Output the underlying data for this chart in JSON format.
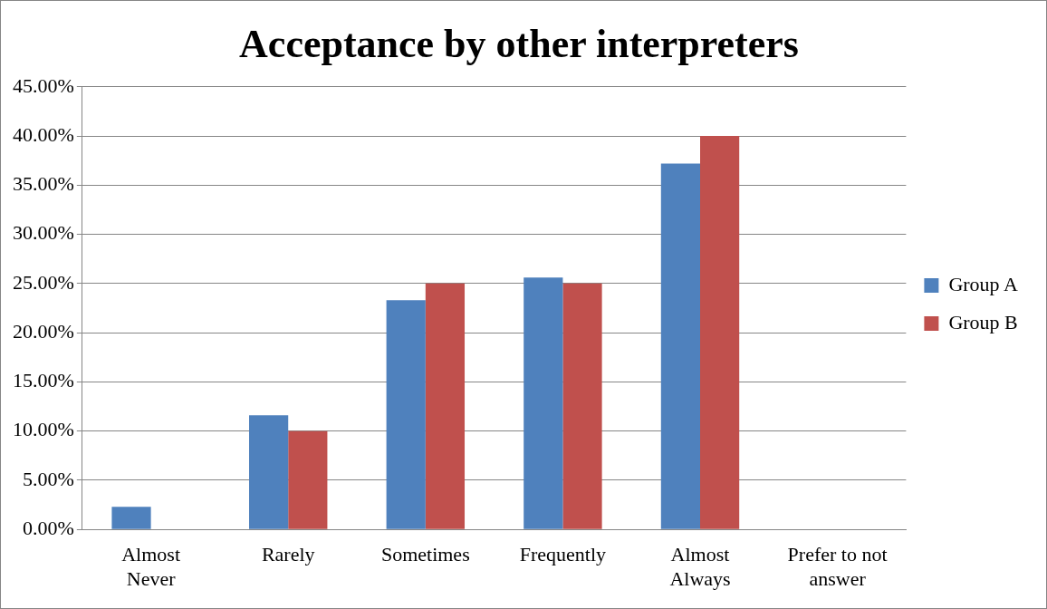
{
  "chart_data": {
    "type": "bar",
    "title": "Acceptance by other interpreters",
    "categories": [
      "Almost Never",
      "Rarely",
      "Sometimes",
      "Frequently",
      "Almost Always",
      "Prefer to not answer"
    ],
    "series": [
      {
        "name": "Group A",
        "color": "#4f81bd",
        "values": [
          2.3,
          11.6,
          23.3,
          25.6,
          37.2,
          0
        ]
      },
      {
        "name": "Group B",
        "color": "#c0504d",
        "values": [
          0,
          10,
          25,
          25,
          40,
          0
        ]
      }
    ],
    "ylim": [
      0,
      45
    ],
    "yticks": [
      {
        "value": 0,
        "label": "0.00%"
      },
      {
        "value": 5,
        "label": "5.00%"
      },
      {
        "value": 10,
        "label": "10.00%"
      },
      {
        "value": 15,
        "label": "15.00%"
      },
      {
        "value": 20,
        "label": "20.00%"
      },
      {
        "value": 25,
        "label": "25.00%"
      },
      {
        "value": 30,
        "label": "30.00%"
      },
      {
        "value": 35,
        "label": "35.00%"
      },
      {
        "value": 40,
        "label": "40.00%"
      },
      {
        "value": 45,
        "label": "45.00%"
      }
    ],
    "grid": "y",
    "legend": "right"
  }
}
